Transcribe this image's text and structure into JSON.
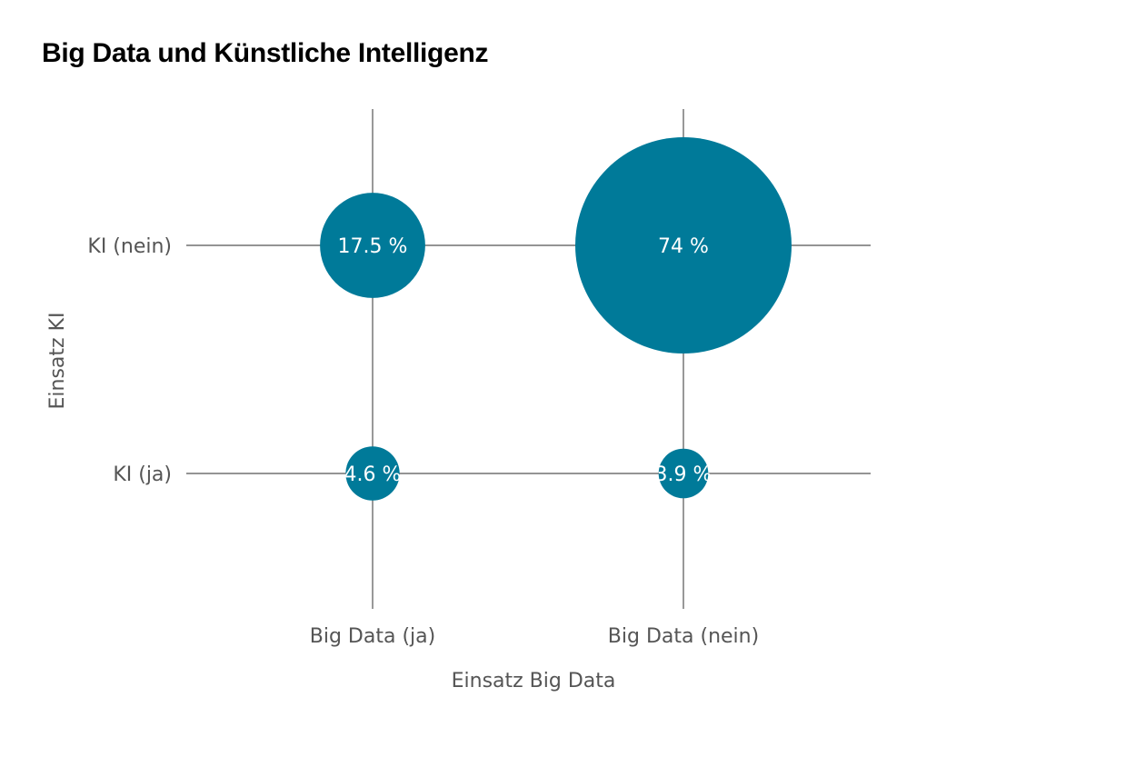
{
  "title": "Big Data und Künstliche Intelligenz",
  "chart_data": {
    "type": "bubble-matrix",
    "title": "Big Data und Künstliche Intelligenz",
    "xlabel": "Einsatz Big Data",
    "ylabel": "Einsatz KI",
    "x_categories": [
      "Big Data (ja)",
      "Big Data (nein)"
    ],
    "y_categories": [
      "KI (nein)",
      "KI (ja)"
    ],
    "bubble_color": "#007a99",
    "bubbles": [
      {
        "x": "Big Data (ja)",
        "y": "KI (nein)",
        "value": 17.5,
        "label": "17.5 %"
      },
      {
        "x": "Big Data (nein)",
        "y": "KI (nein)",
        "value": 74,
        "label": "74 %"
      },
      {
        "x": "Big Data (ja)",
        "y": "KI (ja)",
        "value": 4.6,
        "label": "4.6 %"
      },
      {
        "x": "Big Data (nein)",
        "y": "KI (ja)",
        "value": 3.9,
        "label": "3.9 %"
      }
    ]
  }
}
